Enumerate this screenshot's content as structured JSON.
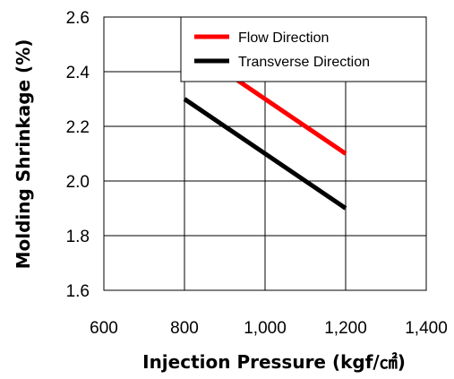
{
  "chart_data": {
    "type": "line",
    "title": "",
    "xlabel": "Injection Pressure (kgf/㎠)",
    "ylabel": "Molding Shrinkage (%)",
    "xlim": [
      600,
      1400
    ],
    "ylim": [
      1.6,
      2.6
    ],
    "x_ticks": [
      "600",
      "800",
      "1,000",
      "1,200",
      "1,400"
    ],
    "y_ticks": [
      "1.6",
      "1.8",
      "2.0",
      "2.2",
      "2.4",
      "2.6"
    ],
    "grid": true,
    "legend_position": "top-right",
    "series": [
      {
        "name": "Flow Direction",
        "color": "#ff0000",
        "x": [
          800,
          1200
        ],
        "y": [
          2.5,
          2.1
        ]
      },
      {
        "name": "Transverse Direction",
        "color": "#000000",
        "x": [
          800,
          1200
        ],
        "y": [
          2.3,
          1.9
        ]
      }
    ]
  }
}
